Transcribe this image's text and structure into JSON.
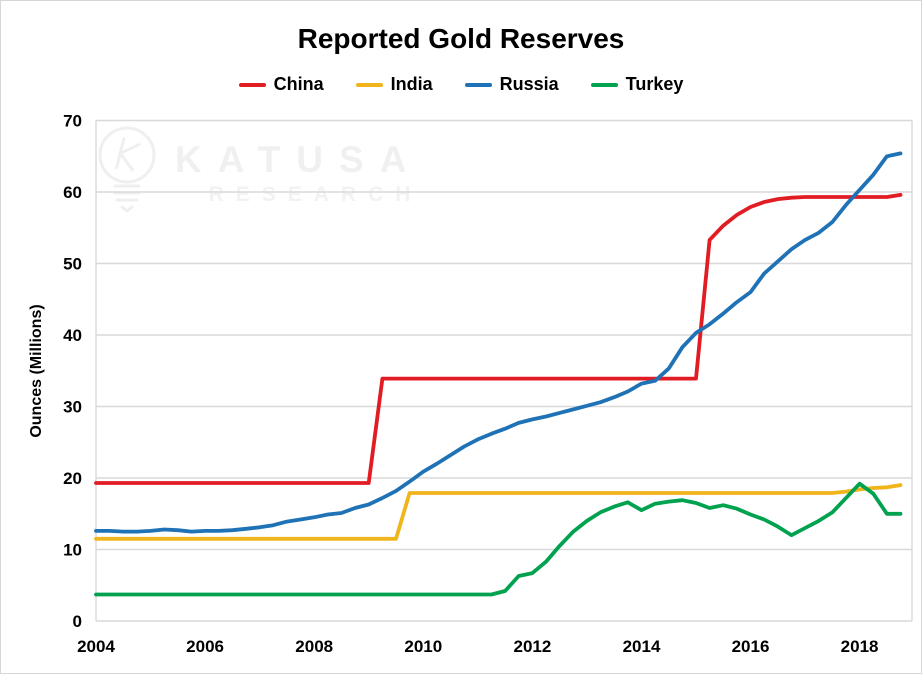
{
  "watermark": {
    "line1": "KATUSA",
    "line2": "RESEARCH"
  },
  "chart_data": {
    "type": "line",
    "title": "Reported Gold Reserves",
    "xlabel": "",
    "ylabel": "Ounces (Millions)",
    "legend_position": "top",
    "grid": "horizontal",
    "grid_color": "#d9d9d9",
    "ylim": [
      0,
      70
    ],
    "xlim": [
      2004,
      2018.96
    ],
    "y_ticks": [
      0,
      10,
      20,
      30,
      40,
      50,
      60,
      70
    ],
    "x_ticks": [
      2004,
      2006,
      2008,
      2010,
      2012,
      2014,
      2016,
      2018
    ],
    "x_start": 2004.0,
    "x_step": 0.25,
    "x_unit": "year (quarterly points)",
    "series": [
      {
        "name": "China",
        "color": "#e11d23",
        "values": [
          19.3,
          19.3,
          19.3,
          19.3,
          19.3,
          19.3,
          19.3,
          19.3,
          19.3,
          19.3,
          19.3,
          19.3,
          19.3,
          19.3,
          19.3,
          19.3,
          19.3,
          19.3,
          19.3,
          19.3,
          19.3,
          33.9,
          33.9,
          33.9,
          33.9,
          33.9,
          33.9,
          33.9,
          33.9,
          33.9,
          33.9,
          33.9,
          33.9,
          33.9,
          33.9,
          33.9,
          33.9,
          33.9,
          33.9,
          33.9,
          33.9,
          33.9,
          33.9,
          33.9,
          33.9,
          53.3,
          55.3,
          56.8,
          57.9,
          58.6,
          59.0,
          59.2,
          59.3,
          59.3,
          59.3,
          59.3,
          59.3,
          59.3,
          59.3,
          59.6
        ]
      },
      {
        "name": "India",
        "color": "#f1b51c",
        "values": [
          11.5,
          11.5,
          11.5,
          11.5,
          11.5,
          11.5,
          11.5,
          11.5,
          11.5,
          11.5,
          11.5,
          11.5,
          11.5,
          11.5,
          11.5,
          11.5,
          11.5,
          11.5,
          11.5,
          11.5,
          11.5,
          11.5,
          11.5,
          17.9,
          17.9,
          17.9,
          17.9,
          17.9,
          17.9,
          17.9,
          17.9,
          17.9,
          17.9,
          17.9,
          17.9,
          17.9,
          17.9,
          17.9,
          17.9,
          17.9,
          17.9,
          17.9,
          17.9,
          17.9,
          17.9,
          17.9,
          17.9,
          17.9,
          17.9,
          17.9,
          17.9,
          17.9,
          17.9,
          17.9,
          17.9,
          18.1,
          18.4,
          18.6,
          18.7,
          19.0
        ]
      },
      {
        "name": "Russia",
        "color": "#1f72b5",
        "values": [
          12.6,
          12.6,
          12.5,
          12.5,
          12.6,
          12.8,
          12.7,
          12.5,
          12.6,
          12.6,
          12.7,
          12.9,
          13.1,
          13.4,
          13.9,
          14.2,
          14.5,
          14.9,
          15.1,
          15.8,
          16.3,
          17.2,
          18.2,
          19.5,
          20.9,
          22.0,
          23.2,
          24.4,
          25.4,
          26.2,
          26.9,
          27.7,
          28.2,
          28.6,
          29.1,
          29.6,
          30.1,
          30.6,
          31.3,
          32.1,
          33.2,
          33.6,
          35.3,
          38.3,
          40.3,
          41.5,
          43.0,
          44.6,
          46.0,
          48.6,
          50.3,
          52.0,
          53.3,
          54.3,
          55.8,
          58.2,
          60.3,
          62.4,
          65.0,
          65.4
        ]
      },
      {
        "name": "Turkey",
        "color": "#00a24f",
        "values": [
          3.7,
          3.7,
          3.7,
          3.7,
          3.7,
          3.7,
          3.7,
          3.7,
          3.7,
          3.7,
          3.7,
          3.7,
          3.7,
          3.7,
          3.7,
          3.7,
          3.7,
          3.7,
          3.7,
          3.7,
          3.7,
          3.7,
          3.7,
          3.7,
          3.7,
          3.7,
          3.7,
          3.7,
          3.7,
          3.7,
          4.2,
          6.3,
          6.7,
          8.3,
          10.5,
          12.5,
          14.0,
          15.2,
          16.0,
          16.6,
          15.5,
          16.4,
          16.7,
          16.9,
          16.5,
          15.8,
          16.2,
          15.7,
          14.9,
          14.2,
          13.2,
          12.0,
          13.0,
          14.0,
          15.2,
          17.2,
          19.2,
          17.8,
          15.0,
          15.0
        ]
      }
    ]
  }
}
